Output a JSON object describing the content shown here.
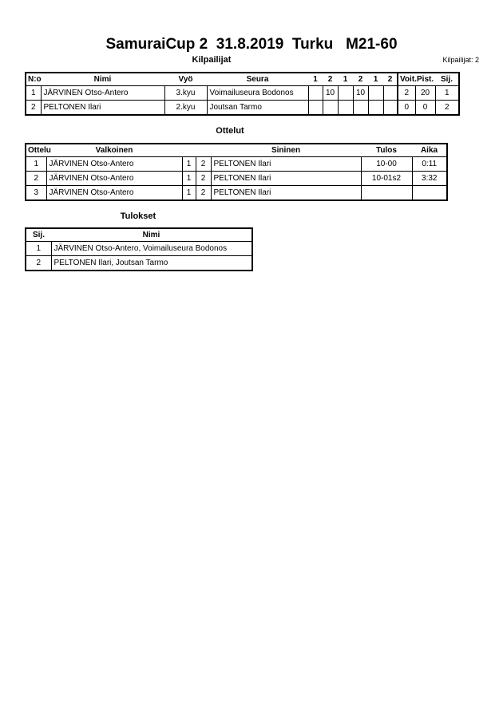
{
  "title": "SamuraiCup 2  31.8.2019  Turku   M21-60",
  "competitors": {
    "heading": "Kilpailijat",
    "count_label": "Kilpailijat: 2",
    "headers": [
      "N:o",
      "Nimi",
      "Vyö",
      "Seura",
      "1",
      "2",
      "1",
      "2",
      "1",
      "2",
      "Voit.",
      "Pist.",
      "Sij."
    ],
    "rows": [
      [
        "1",
        "JÄRVINEN Otso-Antero",
        "3.kyu",
        "Voimailuseura Bodonos",
        "",
        "10",
        "",
        "10",
        "",
        "",
        "2",
        "20",
        "1"
      ],
      [
        "2",
        "PELTONEN Ilari",
        "2.kyu",
        "Joutsan Tarmo",
        "",
        "",
        "",
        "",
        "",
        "",
        "0",
        "0",
        "2"
      ]
    ]
  },
  "matches": {
    "heading": "Ottelut",
    "headers": [
      "Ottelu",
      "Valkoinen",
      "",
      "",
      "Sininen",
      "Tulos",
      "Aika"
    ],
    "rows": [
      [
        "1",
        "JÄRVINEN Otso-Antero",
        "1",
        "2",
        "PELTONEN Ilari",
        "10-00",
        "0:11"
      ],
      [
        "2",
        "JÄRVINEN Otso-Antero",
        "1",
        "2",
        "PELTONEN Ilari",
        "10-01s2",
        "3:32"
      ],
      [
        "3",
        "JÄRVINEN Otso-Antero",
        "1",
        "2",
        "PELTONEN Ilari",
        "",
        ""
      ]
    ]
  },
  "results": {
    "heading": "Tulokset",
    "headers": [
      "Sij.",
      "Nimi"
    ],
    "rows": [
      [
        "1",
        "JÄRVINEN Otso-Antero, Voimailuseura Bodonos"
      ],
      [
        "2",
        "PELTONEN Ilari, Joutsan Tarmo"
      ]
    ]
  }
}
